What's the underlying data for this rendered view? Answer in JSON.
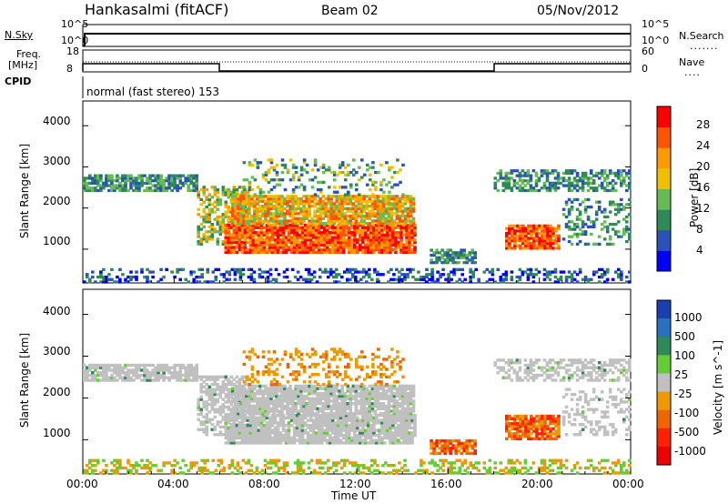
{
  "header": {
    "station": "Hankasalmi (fitACF)",
    "beam": "Beam 02",
    "date": "05/Nov/2012"
  },
  "aux_panels": {
    "nsky_label": "N.Sky",
    "nsearch_label": "N.Search",
    "freq_label_1": "Freq.",
    "freq_label_2": "[MHz]",
    "nave_label": "Nave",
    "cpid_label": "CPID",
    "cpid_text": "normal (fast stereo) 153",
    "noise_ticks": [
      "10^5",
      "10^0"
    ],
    "freq_ticks": [
      "18",
      "8"
    ],
    "nave_ticks": [
      "60",
      "0"
    ]
  },
  "colors": {
    "power": [
      "#0000ff",
      "#2a52b8",
      "#2e8b57",
      "#66bb55",
      "#f0c000",
      "#ff9900",
      "#ff5500",
      "#ff0000"
    ],
    "velocity": [
      "#1a3fb0",
      "#2a70c0",
      "#2e8b57",
      "#66cc33",
      "#c0c0c0",
      "#ee9900",
      "#ee6600",
      "#ff2200",
      "#ee0000"
    ]
  },
  "chart_data": [
    {
      "type": "heatmap",
      "title": "Power",
      "ylabel": "Slant Range [km]",
      "xlabel": "Time UT",
      "xlim": [
        "00:00",
        "24:00"
      ],
      "ylim": [
        180,
        4600
      ],
      "x_ticks": [
        "00:00",
        "04:00",
        "08:00",
        "12:00",
        "16:00",
        "20:00",
        "00:00"
      ],
      "y_ticks": [
        "1000",
        "2000",
        "3000",
        "4000"
      ],
      "colorbar_label": "Power [dB]",
      "colorbar_ticks": [
        "4",
        "8",
        "12",
        "16",
        "20",
        "24",
        "28"
      ],
      "colorbar_range": [
        0,
        30
      ]
    },
    {
      "type": "heatmap",
      "title": "Velocity",
      "ylabel": "Slant Range [km]",
      "xlabel": "Time UT",
      "xlim": [
        "00:00",
        "24:00"
      ],
      "ylim": [
        180,
        4600
      ],
      "x_ticks": [
        "00:00",
        "04:00",
        "08:00",
        "12:00",
        "16:00",
        "20:00",
        "00:00"
      ],
      "y_ticks": [
        "1000",
        "2000",
        "3000",
        "4000"
      ],
      "colorbar_label": "Velocity [m s^-1]",
      "colorbar_ticks": [
        "1000",
        "500",
        "100",
        "25",
        "-25",
        "-100",
        "-500",
        "-1000"
      ]
    }
  ]
}
